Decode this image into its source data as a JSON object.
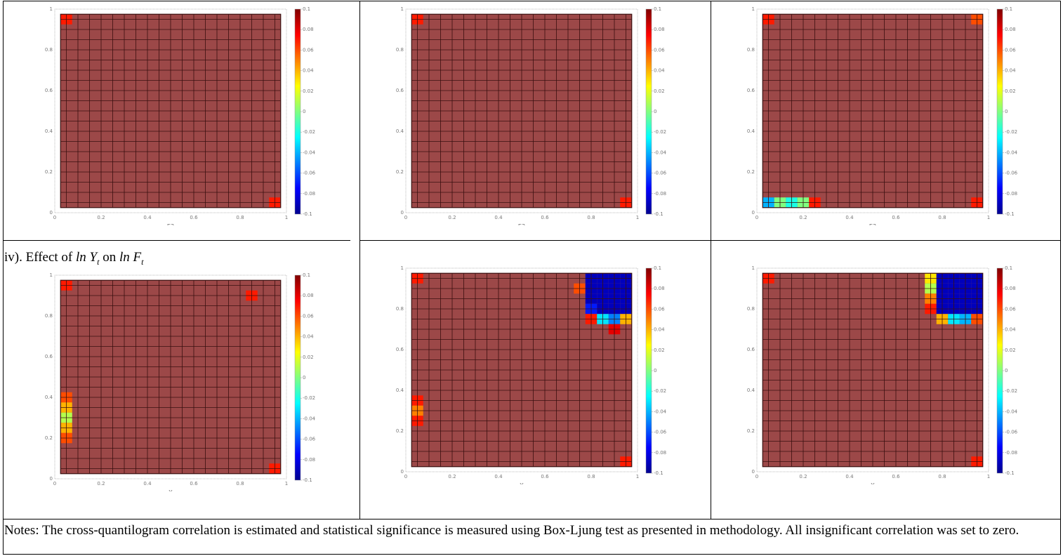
{
  "caption": {
    "prefix": "iv). Effect of ",
    "var1": "ln Y",
    "sub1": "t",
    "mid": " on ",
    "var2": "ln F",
    "sub2": "t"
  },
  "notes": "Notes: The cross-quantilogram correlation is estimated and statistical significance is measured using Box-Ljung test as presented in methodology. All insignificant correlation was set to zero.",
  "colors": {
    "background_cell": "#9c4848",
    "grid_line": "#3a1010",
    "scale": [
      "#00008f",
      "#0000ff",
      "#0080ff",
      "#00ffff",
      "#80ff80",
      "#ffff00",
      "#ff8000",
      "#ff0000",
      "#800000"
    ]
  },
  "chart_data": [
    {
      "type": "heatmap",
      "xlabel": "E3",
      "ylabel": "",
      "xlim": [
        0,
        1
      ],
      "ylim": [
        0,
        1
      ],
      "x_ticks": [
        "0",
        "0.2",
        "0.4",
        "0.6",
        "0.8",
        "1"
      ],
      "y_ticks": [
        "0",
        "0.2",
        "0.4",
        "0.6",
        "0.8",
        "1"
      ],
      "colorbar_ticks": [
        "0.1",
        "0.08",
        "0.06",
        "0.04",
        "0.02",
        "0",
        "-0.02",
        "-0.04",
        "-0.06",
        "-0.08",
        "-0.1"
      ],
      "colorbar_range": [
        -0.1,
        0.1
      ],
      "cells": [
        {
          "x": 0.05,
          "y": 0.95,
          "value": 0.07
        },
        {
          "x": 0.95,
          "y": 0.05,
          "value": 0.07
        }
      ]
    },
    {
      "type": "heatmap",
      "xlabel": "E3",
      "ylabel": "",
      "xlim": [
        0,
        1
      ],
      "ylim": [
        0,
        1
      ],
      "x_ticks": [
        "0",
        "0.2",
        "0.4",
        "0.6",
        "0.8",
        "1"
      ],
      "y_ticks": [
        "0",
        "0.2",
        "0.4",
        "0.6",
        "0.8",
        "1"
      ],
      "colorbar_ticks": [
        "0.1",
        "0.08",
        "0.06",
        "0.04",
        "0.02",
        "0",
        "-0.02",
        "-0.04",
        "-0.06",
        "-0.08",
        "-0.1"
      ],
      "colorbar_range": [
        -0.1,
        0.1
      ],
      "cells": [
        {
          "x": 0.05,
          "y": 0.95,
          "value": 0.07
        },
        {
          "x": 0.95,
          "y": 0.05,
          "value": 0.07
        }
      ]
    },
    {
      "type": "heatmap",
      "xlabel": "E3",
      "ylabel": "",
      "xlim": [
        0,
        1
      ],
      "ylim": [
        0,
        1
      ],
      "x_ticks": [
        "0",
        "0.2",
        "0.4",
        "0.6",
        "0.8",
        "1"
      ],
      "y_ticks": [
        "0",
        "0.2",
        "0.4",
        "0.6",
        "0.8",
        "1"
      ],
      "colorbar_ticks": [
        "0.1",
        "0.08",
        "0.06",
        "0.04",
        "0.02",
        "0",
        "-0.02",
        "-0.04",
        "-0.06",
        "-0.08",
        "-0.1"
      ],
      "colorbar_range": [
        -0.1,
        0.1
      ],
      "cells": [
        {
          "x": 0.05,
          "y": 0.95,
          "value": 0.07
        },
        {
          "x": 0.95,
          "y": 0.95,
          "value": 0.06
        },
        {
          "x": 0.05,
          "y": 0.05,
          "value": -0.04
        },
        {
          "x": 0.1,
          "y": 0.05,
          "value": 0.0
        },
        {
          "x": 0.15,
          "y": 0.05,
          "value": -0.02
        },
        {
          "x": 0.2,
          "y": 0.05,
          "value": 0.0
        },
        {
          "x": 0.25,
          "y": 0.05,
          "value": 0.07
        },
        {
          "x": 0.95,
          "y": 0.05,
          "value": 0.07
        }
      ]
    },
    {
      "type": "heatmap",
      "xlabel": "Y",
      "ylabel": "",
      "xlim": [
        0,
        1
      ],
      "ylim": [
        0,
        1
      ],
      "x_ticks": [
        "0",
        "0.2",
        "0.4",
        "0.6",
        "0.8",
        "1"
      ],
      "y_ticks": [
        "0",
        "0.2",
        "0.4",
        "0.6",
        "0.8",
        "1"
      ],
      "colorbar_ticks": [
        "0.1",
        "0.08",
        "0.06",
        "0.04",
        "0.02",
        "0",
        "-0.02",
        "-0.04",
        "-0.06",
        "-0.08",
        "-0.1"
      ],
      "colorbar_range": [
        -0.1,
        0.1
      ],
      "cells": [
        {
          "x": 0.05,
          "y": 0.95,
          "value": 0.07
        },
        {
          "x": 0.85,
          "y": 0.9,
          "value": 0.07
        },
        {
          "x": 0.05,
          "y": 0.4,
          "value": 0.06
        },
        {
          "x": 0.05,
          "y": 0.35,
          "value": 0.04
        },
        {
          "x": 0.05,
          "y": 0.3,
          "value": 0.01
        },
        {
          "x": 0.05,
          "y": 0.25,
          "value": 0.04
        },
        {
          "x": 0.05,
          "y": 0.2,
          "value": 0.06
        },
        {
          "x": 0.95,
          "y": 0.05,
          "value": 0.07
        }
      ]
    },
    {
      "type": "heatmap",
      "xlabel": "Y",
      "ylabel": "",
      "xlim": [
        0,
        1
      ],
      "ylim": [
        0,
        1
      ],
      "x_ticks": [
        "0",
        "0.2",
        "0.4",
        "0.6",
        "0.8",
        "1"
      ],
      "y_ticks": [
        "0",
        "0.2",
        "0.4",
        "0.6",
        "0.8",
        "1"
      ],
      "colorbar_ticks": [
        "0.1",
        "0.08",
        "0.06",
        "0.04",
        "0.02",
        "0",
        "-0.02",
        "-0.04",
        "-0.06",
        "-0.08",
        "-0.1"
      ],
      "colorbar_range": [
        -0.1,
        0.1
      ],
      "cells": [
        {
          "x": 0.05,
          "y": 0.95,
          "value": 0.07
        },
        {
          "x": 0.75,
          "y": 0.9,
          "value": 0.06
        },
        {
          "x": 0.8,
          "y": 0.95,
          "value": -0.09
        },
        {
          "x": 0.85,
          "y": 0.95,
          "value": -0.09
        },
        {
          "x": 0.9,
          "y": 0.95,
          "value": -0.09
        },
        {
          "x": 0.95,
          "y": 0.95,
          "value": -0.09
        },
        {
          "x": 0.8,
          "y": 0.9,
          "value": -0.09
        },
        {
          "x": 0.85,
          "y": 0.9,
          "value": -0.09
        },
        {
          "x": 0.9,
          "y": 0.9,
          "value": -0.09
        },
        {
          "x": 0.95,
          "y": 0.9,
          "value": -0.09
        },
        {
          "x": 0.8,
          "y": 0.85,
          "value": -0.09
        },
        {
          "x": 0.85,
          "y": 0.85,
          "value": -0.09
        },
        {
          "x": 0.9,
          "y": 0.85,
          "value": -0.09
        },
        {
          "x": 0.95,
          "y": 0.85,
          "value": -0.09
        },
        {
          "x": 0.8,
          "y": 0.8,
          "value": -0.07
        },
        {
          "x": 0.85,
          "y": 0.8,
          "value": -0.09
        },
        {
          "x": 0.9,
          "y": 0.8,
          "value": -0.09
        },
        {
          "x": 0.95,
          "y": 0.8,
          "value": -0.09
        },
        {
          "x": 0.8,
          "y": 0.75,
          "value": 0.07
        },
        {
          "x": 0.85,
          "y": 0.75,
          "value": -0.03
        },
        {
          "x": 0.9,
          "y": 0.75,
          "value": -0.05
        },
        {
          "x": 0.95,
          "y": 0.75,
          "value": 0.04
        },
        {
          "x": 0.9,
          "y": 0.7,
          "value": 0.08
        },
        {
          "x": 0.05,
          "y": 0.35,
          "value": 0.07
        },
        {
          "x": 0.05,
          "y": 0.3,
          "value": 0.05
        },
        {
          "x": 0.05,
          "y": 0.25,
          "value": 0.07
        },
        {
          "x": 0.95,
          "y": 0.05,
          "value": 0.07
        }
      ]
    },
    {
      "type": "heatmap",
      "xlabel": "Y",
      "ylabel": "",
      "xlim": [
        0,
        1
      ],
      "ylim": [
        0,
        1
      ],
      "x_ticks": [
        "0",
        "0.2",
        "0.4",
        "0.6",
        "0.8",
        "1"
      ],
      "y_ticks": [
        "0",
        "0.2",
        "0.4",
        "0.6",
        "0.8",
        "1"
      ],
      "colorbar_ticks": [
        "0.1",
        "0.08",
        "0.06",
        "0.04",
        "0.02",
        "0",
        "-0.02",
        "-0.04",
        "-0.06",
        "-0.08",
        "-0.1"
      ],
      "colorbar_range": [
        -0.1,
        0.1
      ],
      "cells": [
        {
          "x": 0.05,
          "y": 0.95,
          "value": 0.07
        },
        {
          "x": 0.75,
          "y": 0.95,
          "value": 0.03
        },
        {
          "x": 0.75,
          "y": 0.9,
          "value": 0.01
        },
        {
          "x": 0.75,
          "y": 0.85,
          "value": 0.05
        },
        {
          "x": 0.75,
          "y": 0.8,
          "value": 0.07
        },
        {
          "x": 0.8,
          "y": 0.95,
          "value": -0.09
        },
        {
          "x": 0.85,
          "y": 0.95,
          "value": -0.09
        },
        {
          "x": 0.9,
          "y": 0.95,
          "value": -0.09
        },
        {
          "x": 0.95,
          "y": 0.95,
          "value": -0.09
        },
        {
          "x": 0.8,
          "y": 0.9,
          "value": -0.09
        },
        {
          "x": 0.85,
          "y": 0.9,
          "value": -0.09
        },
        {
          "x": 0.9,
          "y": 0.9,
          "value": -0.09
        },
        {
          "x": 0.95,
          "y": 0.9,
          "value": -0.09
        },
        {
          "x": 0.8,
          "y": 0.85,
          "value": -0.09
        },
        {
          "x": 0.85,
          "y": 0.85,
          "value": -0.09
        },
        {
          "x": 0.9,
          "y": 0.85,
          "value": -0.09
        },
        {
          "x": 0.95,
          "y": 0.85,
          "value": -0.09
        },
        {
          "x": 0.8,
          "y": 0.8,
          "value": -0.09
        },
        {
          "x": 0.85,
          "y": 0.8,
          "value": -0.09
        },
        {
          "x": 0.9,
          "y": 0.8,
          "value": -0.09
        },
        {
          "x": 0.95,
          "y": 0.8,
          "value": -0.09
        },
        {
          "x": 0.8,
          "y": 0.75,
          "value": 0.04
        },
        {
          "x": 0.85,
          "y": 0.75,
          "value": -0.03
        },
        {
          "x": 0.9,
          "y": 0.75,
          "value": -0.04
        },
        {
          "x": 0.95,
          "y": 0.75,
          "value": 0.06
        },
        {
          "x": 0.95,
          "y": 0.05,
          "value": 0.07
        }
      ]
    }
  ]
}
